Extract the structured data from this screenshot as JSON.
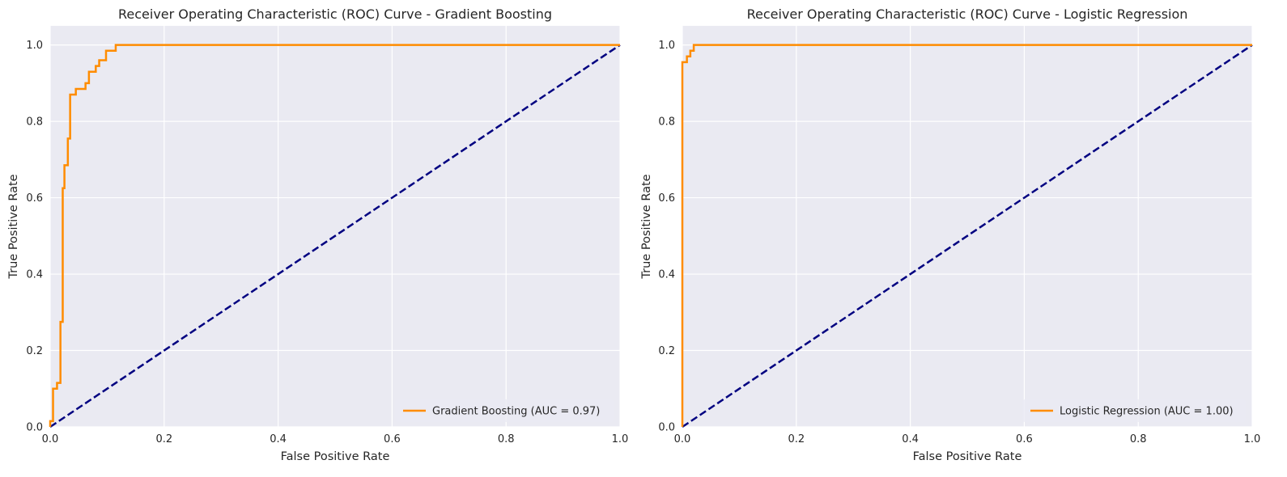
{
  "colors": {
    "plot_bg": "#eaeaf2",
    "grid": "#ffffff",
    "roc_line": "#ff8c00",
    "diagonal": "#000080",
    "text": "#262626"
  },
  "chart_data": [
    {
      "type": "line",
      "title": "Receiver Operating Characteristic (ROC) Curve - Gradient Boosting",
      "xlabel": "False Positive Rate",
      "ylabel": "True Positive Rate",
      "xlim": [
        0.0,
        1.0
      ],
      "ylim": [
        0.0,
        1.05
      ],
      "xticks": [
        "0.0",
        "0.2",
        "0.4",
        "0.6",
        "0.8",
        "1.0"
      ],
      "yticks": [
        "0.0",
        "0.2",
        "0.4",
        "0.6",
        "0.8",
        "1.0"
      ],
      "grid": true,
      "legend_position": "lower-right",
      "series": [
        {
          "name": "Gradient Boosting (AUC = 0.97)",
          "color": "#ff8c00",
          "style": "solid",
          "x": [
            0.0,
            0.0,
            0.005,
            0.005,
            0.012,
            0.012,
            0.018,
            0.018,
            0.022,
            0.022,
            0.025,
            0.025,
            0.031,
            0.031,
            0.035,
            0.035,
            0.045,
            0.045,
            0.062,
            0.062,
            0.068,
            0.068,
            0.08,
            0.08,
            0.086,
            0.086,
            0.098,
            0.098,
            0.115,
            0.115,
            1.0
          ],
          "y": [
            0.0,
            0.015,
            0.015,
            0.1,
            0.1,
            0.115,
            0.115,
            0.275,
            0.275,
            0.625,
            0.625,
            0.685,
            0.685,
            0.755,
            0.755,
            0.87,
            0.87,
            0.885,
            0.885,
            0.9,
            0.9,
            0.93,
            0.93,
            0.945,
            0.945,
            0.96,
            0.96,
            0.985,
            0.985,
            1.0,
            1.0
          ]
        },
        {
          "name": "",
          "color": "#000080",
          "style": "dashed",
          "x": [
            0.0,
            1.0
          ],
          "y": [
            0.0,
            1.0
          ]
        }
      ]
    },
    {
      "type": "line",
      "title": "Receiver Operating Characteristic (ROC) Curve - Logistic Regression",
      "xlabel": "False Positive Rate",
      "ylabel": "True Positive Rate",
      "xlim": [
        0.0,
        1.0
      ],
      "ylim": [
        0.0,
        1.05
      ],
      "xticks": [
        "0.0",
        "0.2",
        "0.4",
        "0.6",
        "0.8",
        "1.0"
      ],
      "yticks": [
        "0.0",
        "0.2",
        "0.4",
        "0.6",
        "0.8",
        "1.0"
      ],
      "grid": true,
      "legend_position": "lower-right",
      "series": [
        {
          "name": "Logistic Regression (AUC = 1.00)",
          "color": "#ff8c00",
          "style": "solid",
          "x": [
            0.0,
            0.0,
            0.008,
            0.008,
            0.014,
            0.014,
            0.02,
            0.02,
            1.0
          ],
          "y": [
            0.0,
            0.955,
            0.955,
            0.97,
            0.97,
            0.985,
            0.985,
            1.0,
            1.0
          ]
        },
        {
          "name": "",
          "color": "#000080",
          "style": "dashed",
          "x": [
            0.0,
            1.0
          ],
          "y": [
            0.0,
            1.0
          ]
        }
      ]
    }
  ]
}
